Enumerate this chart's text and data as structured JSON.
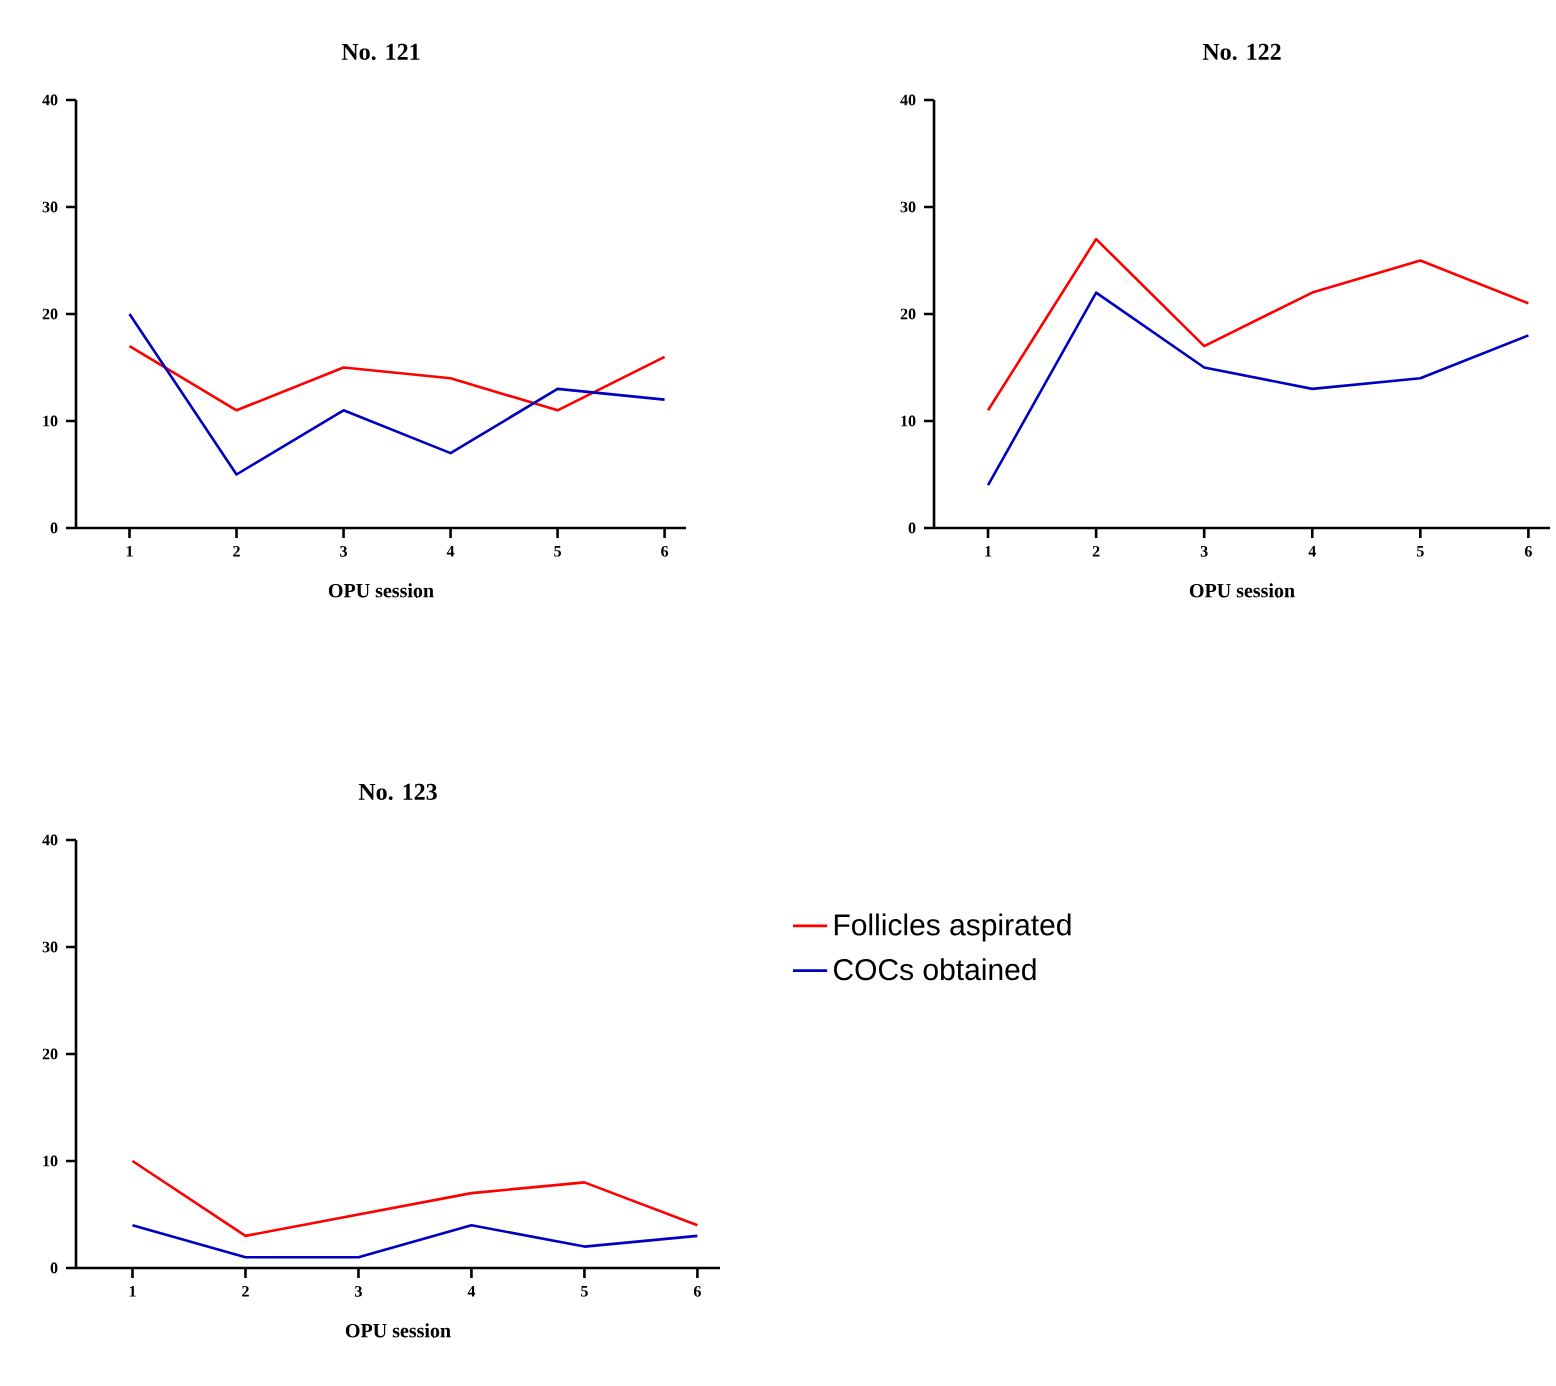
{
  "chart_data": [
    {
      "type": "line",
      "title": "No. 121",
      "xlabel": "OPU session",
      "x": [
        1,
        2,
        3,
        4,
        5,
        6
      ],
      "xlim": [
        0.5,
        6.2
      ],
      "xticks": [
        1,
        2,
        3,
        4,
        5,
        6
      ],
      "ylim": [
        0,
        40
      ],
      "yticks": [
        0,
        10,
        20,
        30,
        40
      ],
      "series": [
        {
          "color": "#ff0000",
          "values": [
            17,
            11,
            15,
            14,
            11,
            16
          ]
        },
        {
          "color": "#0000c0",
          "values": [
            20,
            5,
            11,
            7,
            13,
            12
          ]
        }
      ]
    },
    {
      "type": "line",
      "title": "No. 122",
      "xlabel": "OPU session",
      "x": [
        1,
        2,
        3,
        4,
        5,
        6
      ],
      "xlim": [
        0.5,
        6.2
      ],
      "xticks": [
        1,
        2,
        3,
        4,
        5,
        6
      ],
      "ylim": [
        0,
        40
      ],
      "yticks": [
        0,
        10,
        20,
        30,
        40
      ],
      "series": [
        {
          "color": "#ff0000",
          "values": [
            11,
            27,
            17,
            22,
            25,
            21
          ]
        },
        {
          "color": "#0000c0",
          "values": [
            4,
            22,
            15,
            13,
            14,
            18
          ]
        }
      ]
    },
    {
      "type": "line",
      "title": "No. 123",
      "xlabel": "OPU session",
      "x": [
        1,
        2,
        3,
        4,
        5,
        6
      ],
      "xlim": [
        0.5,
        6.2
      ],
      "xticks": [
        1,
        2,
        3,
        4,
        5,
        6
      ],
      "ylim": [
        0,
        40
      ],
      "yticks": [
        0,
        10,
        20,
        30,
        40
      ],
      "legend": "right",
      "series": [
        {
          "name": "Follicles aspirated",
          "color": "#ff0000",
          "values": [
            10,
            3,
            5,
            7,
            8,
            4
          ]
        },
        {
          "name": "COCs obtained",
          "color": "#0000c0",
          "values": [
            4,
            1,
            1,
            4,
            2,
            3
          ]
        }
      ]
    }
  ]
}
